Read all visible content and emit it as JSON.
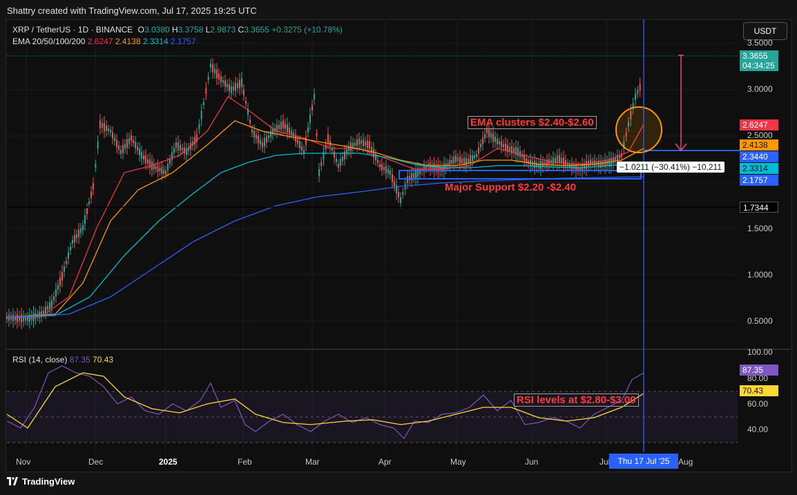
{
  "header": {
    "caption": "Shattry created with TradingView.com, Jul 17, 2025 19:25 UTC"
  },
  "symbol": {
    "name": "XRP / TetherUS · 1D · BINANCE",
    "o_label": "O",
    "o": "3.0380",
    "h_label": "H",
    "h": "3.3758",
    "l_label": "L",
    "l": "2.9873",
    "c_label": "C",
    "c": "3.3655",
    "change": "+0.3275 (+10.78%)"
  },
  "ema_legend": {
    "label": "EMA 20/50/100/200",
    "ema20": "2.6247",
    "ema50": "2.4138",
    "ema100": "2.3314",
    "ema200": "2.1757"
  },
  "currency_button": "USDT",
  "price_axis": {
    "ticks": [
      "3.5000",
      "3.0000",
      "2.5000",
      "1.5000",
      "1.0000",
      "0.5000"
    ]
  },
  "price_tags": {
    "last": "3.3655",
    "countdown": "04:34:25",
    "ema20": "2.6247",
    "ema50": "2.4138",
    "level": "2.3440",
    "ema100": "2.3314",
    "ema200": "2.1757",
    "hline": "1.7344"
  },
  "annotations": {
    "ema_clusters": "EMA clusters $2.40-$2.60",
    "major_support": "Major Support $2.20 -$2.40",
    "rsi_levels": "RSI levels at $2.80-$3.00",
    "measure": "−1.0211 (−30.41%) −10,211"
  },
  "rsi": {
    "label": "RSI (14, close)",
    "value": "87.35",
    "ma": "70.43",
    "axis": [
      "100.00",
      "80.00",
      "60.00",
      "40.00"
    ]
  },
  "time_axis": {
    "labels": [
      "Nov",
      "Dec",
      "2025",
      "Feb",
      "Mar",
      "Apr",
      "May",
      "Jun",
      "Jul",
      "Aug"
    ],
    "cursor": "Thu 17 Jul '25"
  },
  "footer": {
    "brand": "TradingView"
  },
  "colors": {
    "ema20": "#f23645",
    "ema50": "#ff9800",
    "ema100": "#00bcd4",
    "ema200": "#2962ff",
    "up": "#26a69a",
    "down": "#ef5350",
    "rsi": "#7e57c2",
    "rsi_ma": "#fdd835"
  }
}
